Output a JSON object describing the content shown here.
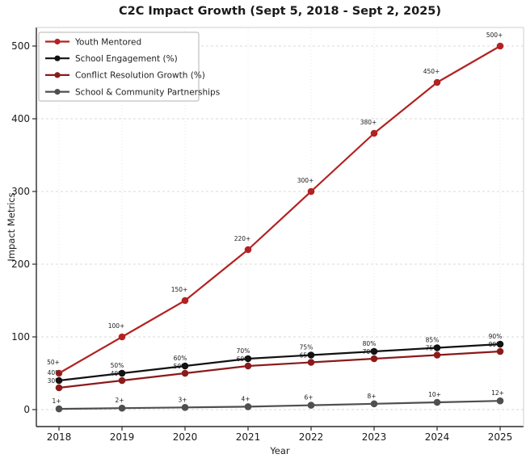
{
  "title": "C2C Impact Growth (Sept 5, 2018 - Sept 2, 2025)",
  "chart_data": {
    "type": "line",
    "x": [
      2018,
      2019,
      2020,
      2021,
      2022,
      2023,
      2024,
      2025
    ],
    "xlabel": "Year",
    "ylabel": "Impact Metrics",
    "ylim": [
      -25,
      520
    ],
    "yticks": [
      0,
      100,
      200,
      300,
      400,
      500
    ],
    "grid": true,
    "legend_position": "upper left",
    "series": [
      {
        "name": "Youth Mentored",
        "color": "#b22222",
        "values": [
          50,
          100,
          150,
          220,
          300,
          380,
          450,
          500
        ],
        "point_labels": [
          "50+",
          "100+",
          "150+",
          "220+",
          "300+",
          "380+",
          "450+",
          "500+"
        ]
      },
      {
        "name": "School Engagement (%)",
        "color": "#111111",
        "values": [
          40,
          50,
          60,
          70,
          75,
          80,
          85,
          90
        ],
        "point_labels": [
          "40%",
          "50%",
          "60%",
          "70%",
          "75%",
          "80%",
          "85%",
          "90%"
        ]
      },
      {
        "name": "Conflict Resolution Growth (%)",
        "color": "#8b1a1a",
        "values": [
          30,
          40,
          50,
          60,
          65,
          70,
          75,
          80
        ],
        "point_labels": [
          "30%",
          "40%",
          "50%",
          "60%",
          "65%",
          "70%",
          "75%",
          "80%"
        ]
      },
      {
        "name": "School & Community Partnerships",
        "color": "#4f4f4f",
        "values": [
          1,
          2,
          3,
          4,
          6,
          8,
          10,
          12
        ],
        "point_labels": [
          "1+",
          "2+",
          "3+",
          "4+",
          "6+",
          "8+",
          "10+",
          "12+"
        ]
      }
    ]
  }
}
